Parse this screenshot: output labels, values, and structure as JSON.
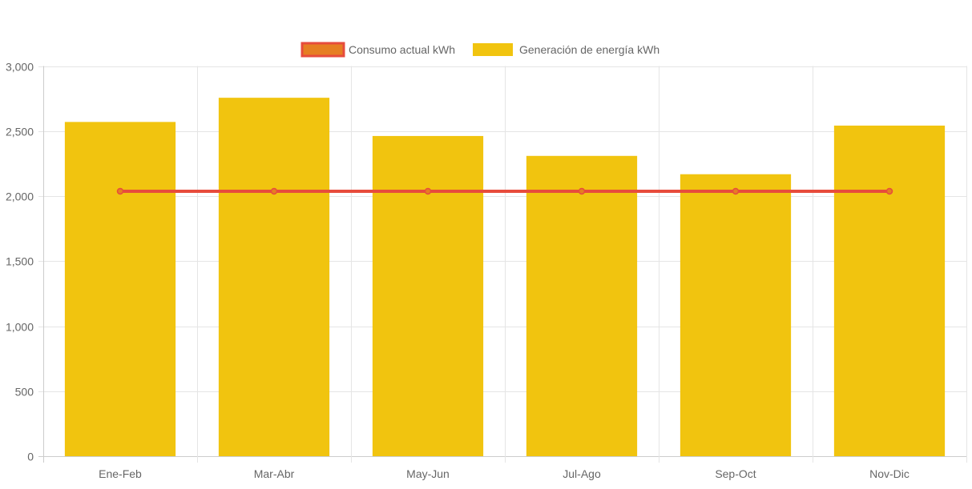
{
  "chart_data": {
    "type": "bar",
    "title": "",
    "xlabel": "",
    "ylabel": "",
    "categories": [
      "Ene-Feb",
      "Mar-Abr",
      "May-Jun",
      "Jul-Ago",
      "Sep-Oct",
      "Nov-Dic"
    ],
    "ylim": [
      0,
      3000
    ],
    "yticks": [
      0,
      500,
      1000,
      1500,
      2000,
      2500,
      3000
    ],
    "ytick_labels": [
      "0",
      "500",
      "1,000",
      "1,500",
      "2,000",
      "2,500",
      "3,000"
    ],
    "grid": true,
    "legend_position": "top",
    "series": [
      {
        "name": "Consumo actual kWh",
        "type": "line",
        "color": "#e74c3c",
        "point_color": "#e67e22",
        "values": [
          2037,
          2037,
          2037,
          2037,
          2037,
          2037
        ]
      },
      {
        "name": "Generación de energía kWh",
        "type": "bar",
        "color": "#f1c40f",
        "values": [
          2570,
          2756,
          2462,
          2309,
          2168,
          2542
        ]
      }
    ]
  }
}
